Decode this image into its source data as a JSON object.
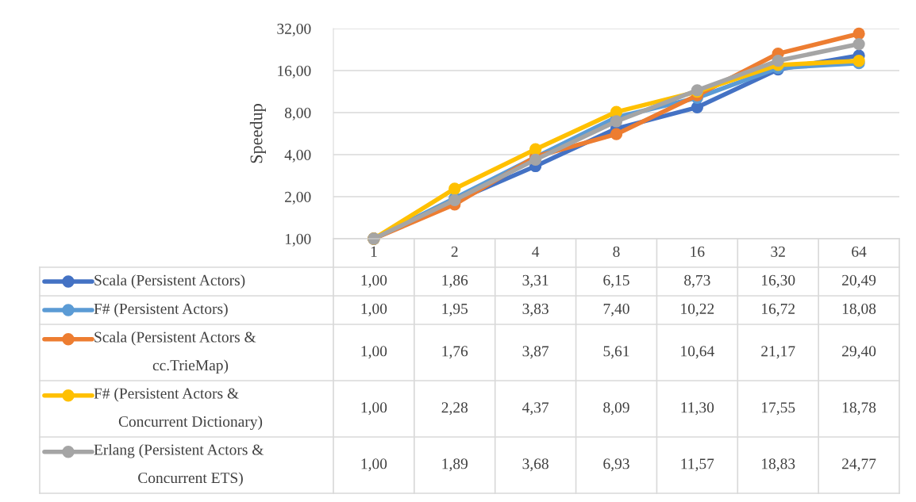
{
  "chart_data": {
    "type": "line",
    "ylabel": "Speedup",
    "categories": [
      "1",
      "2",
      "4",
      "8",
      "16",
      "32",
      "64"
    ],
    "log": true,
    "ylim": [
      1,
      32
    ],
    "yticks": [
      {
        "value": 1,
        "label": "1,00"
      },
      {
        "value": 2,
        "label": "2,00"
      },
      {
        "value": 4,
        "label": "4,00"
      },
      {
        "value": 8,
        "label": "8,00"
      },
      {
        "value": 16,
        "label": "16,00"
      },
      {
        "value": 32,
        "label": "32,00"
      }
    ],
    "grid": "y",
    "legend": "bottom",
    "marker": "circle",
    "line_style": "solid",
    "series": [
      {
        "name": "Scala (Persistent Actors)",
        "color": "#4472c4",
        "values": [
          1.0,
          1.86,
          3.31,
          6.15,
          8.73,
          16.3,
          20.49
        ],
        "value_labels": [
          "1,00",
          "1,86",
          "3,31",
          "6,15",
          "8,73",
          "16,30",
          "20,49"
        ]
      },
      {
        "name": "F# (Persistent Actors)",
        "color": "#5b9bd5",
        "values": [
          1.0,
          1.95,
          3.83,
          7.4,
          10.22,
          16.72,
          18.08
        ],
        "value_labels": [
          "1,00",
          "1,95",
          "3,83",
          "7,40",
          "10,22",
          "16,72",
          "18,08"
        ]
      },
      {
        "name": "Scala (Persistent Actors & cc.TrieMap)",
        "color": "#ed7d31",
        "values": [
          1.0,
          1.76,
          3.87,
          5.61,
          10.64,
          21.17,
          29.4
        ],
        "value_labels": [
          "1,00",
          "1,76",
          "3,87",
          "5,61",
          "10,64",
          "21,17",
          "29,40"
        ]
      },
      {
        "name": "F# (Persistent Actors & Concurrent Dictionary)",
        "color": "#ffc000",
        "values": [
          1.0,
          2.28,
          4.37,
          8.09,
          11.3,
          17.55,
          18.78
        ],
        "value_labels": [
          "1,00",
          "2,28",
          "4,37",
          "8,09",
          "11,30",
          "17,55",
          "18,78"
        ]
      },
      {
        "name": "Erlang (Persistent Actors & Concurrent ETS)",
        "color": "#a5a5a5",
        "values": [
          1.0,
          1.89,
          3.68,
          6.93,
          11.57,
          18.83,
          24.77
        ],
        "value_labels": [
          "1,00",
          "1,89",
          "3,68",
          "6,93",
          "11,57",
          "18,83",
          "24,77"
        ]
      }
    ]
  }
}
